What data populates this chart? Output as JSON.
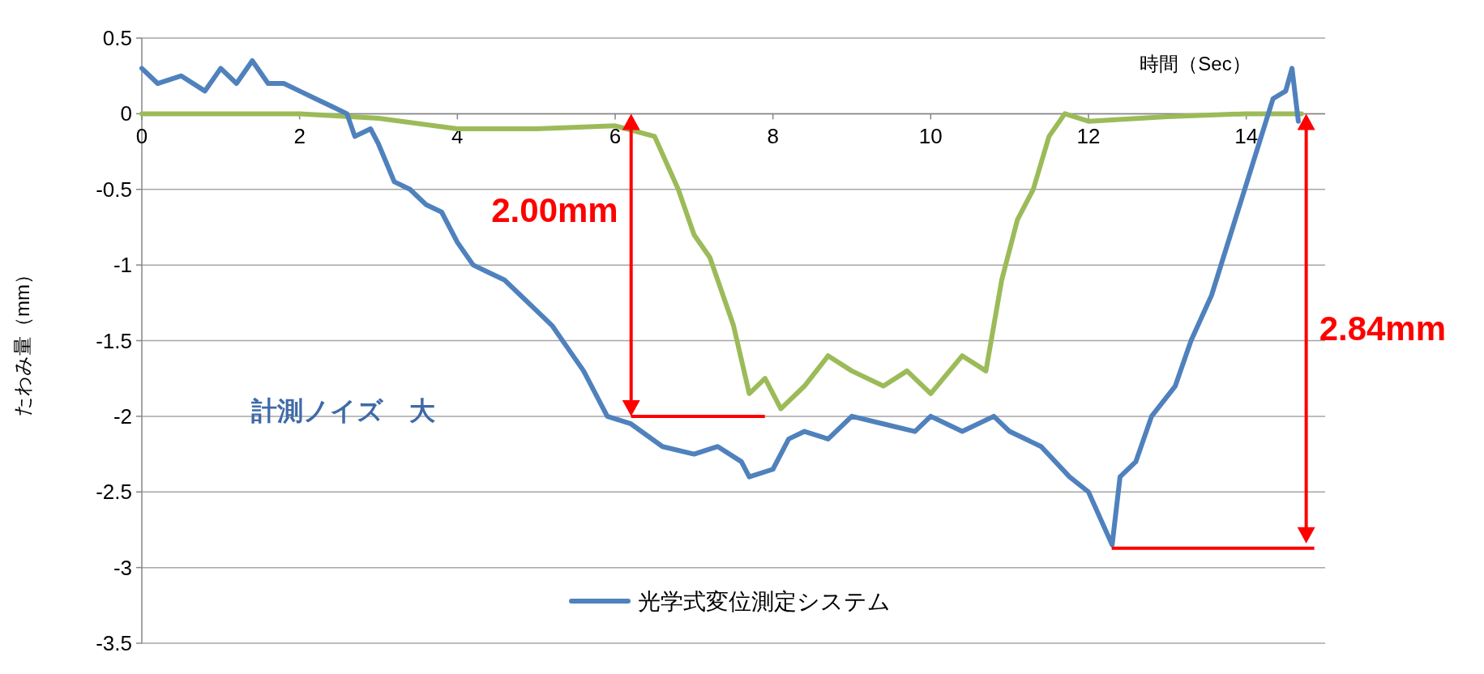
{
  "chart_data": {
    "type": "line",
    "xlabel": "時間（Sec）",
    "ylabel": "たわみ量（mm）",
    "xlim": [
      0,
      15
    ],
    "xticks": [
      0,
      2,
      4,
      6,
      8,
      10,
      12,
      14
    ],
    "ylim": [
      -3.5,
      0.5
    ],
    "yticks": [
      0.5,
      0,
      -0.5,
      -1,
      -1.5,
      -2,
      -2.5,
      -3,
      -3.5
    ],
    "grid": "y",
    "legend": "bottom",
    "series": [
      {
        "color": "#9bbb59",
        "x": [
          0,
          1,
          2,
          3,
          4,
          5,
          6,
          6.5,
          6.8,
          7,
          7.2,
          7.5,
          7.7,
          7.9,
          8.1,
          8.4,
          8.7,
          9,
          9.4,
          9.7,
          10,
          10.4,
          10.7,
          10.9,
          11.1,
          11.3,
          11.5,
          11.7,
          12,
          13,
          14,
          14.7
        ],
        "values": [
          0,
          0,
          0,
          -0.03,
          -0.1,
          -0.1,
          -0.08,
          -0.15,
          -0.5,
          -0.8,
          -0.95,
          -1.4,
          -1.85,
          -1.75,
          -1.95,
          -1.8,
          -1.6,
          -1.7,
          -1.8,
          -1.7,
          -1.85,
          -1.6,
          -1.7,
          -1.1,
          -0.7,
          -0.5,
          -0.15,
          0,
          -0.05,
          -0.02,
          0,
          0
        ]
      },
      {
        "name": "光学式変位測定システム",
        "color": "#4f81bd",
        "x": [
          0,
          0.2,
          0.5,
          0.8,
          1,
          1.2,
          1.4,
          1.6,
          1.8,
          2,
          2.2,
          2.4,
          2.6,
          2.7,
          2.9,
          3,
          3.2,
          3.4,
          3.6,
          3.8,
          4,
          4.2,
          4.4,
          4.6,
          4.8,
          5,
          5.2,
          5.4,
          5.6,
          5.9,
          6.2,
          6.6,
          7,
          7.3,
          7.6,
          7.7,
          8,
          8.2,
          8.4,
          8.7,
          9,
          9.4,
          9.8,
          10,
          10.4,
          10.8,
          11,
          11.4,
          11.76,
          12,
          12.3,
          12.4,
          12.6,
          12.8,
          13.1,
          13.3,
          13.56,
          13.8,
          14.04,
          14.16,
          14.34,
          14.5,
          14.58,
          14.66
        ],
        "values": [
          0.3,
          0.2,
          0.25,
          0.15,
          0.3,
          0.2,
          0.35,
          0.2,
          0.2,
          0.15,
          0.1,
          0.05,
          0,
          -0.15,
          -0.1,
          -0.2,
          -0.45,
          -0.5,
          -0.6,
          -0.65,
          -0.85,
          -1,
          -1.05,
          -1.1,
          -1.2,
          -1.3,
          -1.4,
          -1.55,
          -1.7,
          -2,
          -2.05,
          -2.2,
          -2.25,
          -2.2,
          -2.3,
          -2.4,
          -2.35,
          -2.15,
          -2.1,
          -2.15,
          -2,
          -2.05,
          -2.1,
          -2,
          -2.1,
          -2,
          -2.1,
          -2.2,
          -2.4,
          -2.5,
          -2.85,
          -2.4,
          -2.3,
          -2,
          -1.8,
          -1.5,
          -1.2,
          -0.8,
          -0.4,
          -0.2,
          0.1,
          0.15,
          0.3,
          -0.05
        ]
      }
    ],
    "annotations": [
      "計測ノイズ　大",
      "2.00mm",
      "2.84mm"
    ]
  }
}
